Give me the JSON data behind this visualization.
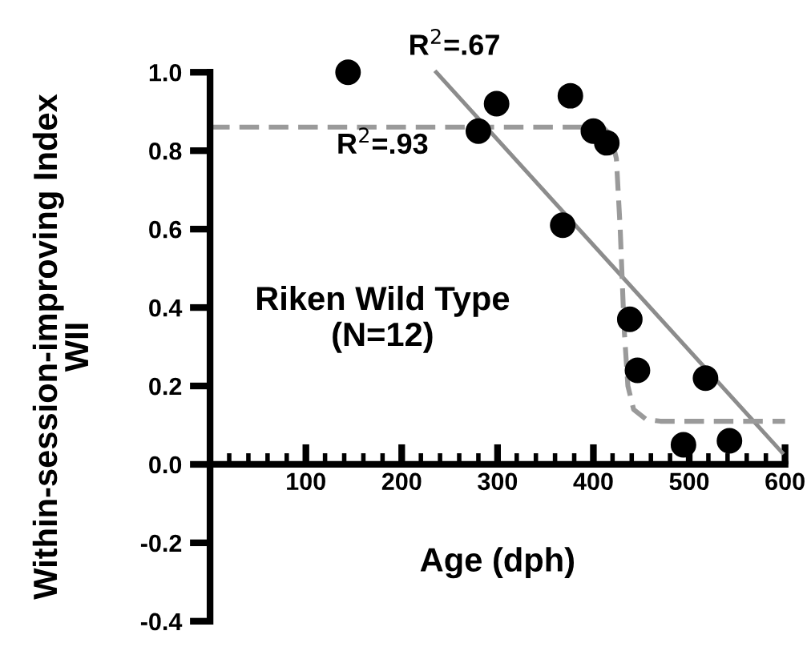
{
  "chart_data": {
    "type": "scatter",
    "xlabel": "Age (dph)",
    "ylabel": "Within-session-improving Index\nWII",
    "xlim": [
      0,
      600
    ],
    "xticks": [
      100,
      200,
      300,
      400,
      500,
      600
    ],
    "ylim": [
      -0.4,
      1.0
    ],
    "yticks": [
      -0.4,
      -0.2,
      {
        "value": 0,
        "label": "0.0"
      },
      0.2,
      0.4,
      0.6,
      0.8,
      {
        "value": 1,
        "label": "1.0"
      }
    ],
    "grid": false,
    "legend": false,
    "annotations": [
      "R$^{2}$=.67",
      "R$^{2}$=.93",
      "Riken Wild Type\n(N=12)"
    ],
    "series": [
      {
        "marker": "circle",
        "color": "#000000",
        "x": [
          144,
          280,
          299,
          376,
          368,
          400,
          414,
          438,
          446,
          517,
          494,
          542
        ],
        "values": [
          1.0,
          0.85,
          0.92,
          0.94,
          0.61,
          0.85,
          0.82,
          0.37,
          0.24,
          0.22,
          0.05,
          0.06
        ]
      },
      {
        "type": "line",
        "marker": "none",
        "color": "#8c8c8c",
        "line_style": "solid",
        "x": [
          236,
          597
        ],
        "values": [
          1.0,
          0.03
        ]
      },
      {
        "type": "line",
        "marker": "none",
        "color": "#9a9a9a",
        "line_style": "dashed",
        "x": [
          0,
          410,
          418,
          424,
          428,
          432,
          436,
          442,
          455,
          470,
          600
        ],
        "values": [
          0.86,
          0.86,
          0.84,
          0.78,
          0.6,
          0.35,
          0.2,
          0.14,
          0.115,
          0.11,
          0.11
        ]
      }
    ]
  }
}
